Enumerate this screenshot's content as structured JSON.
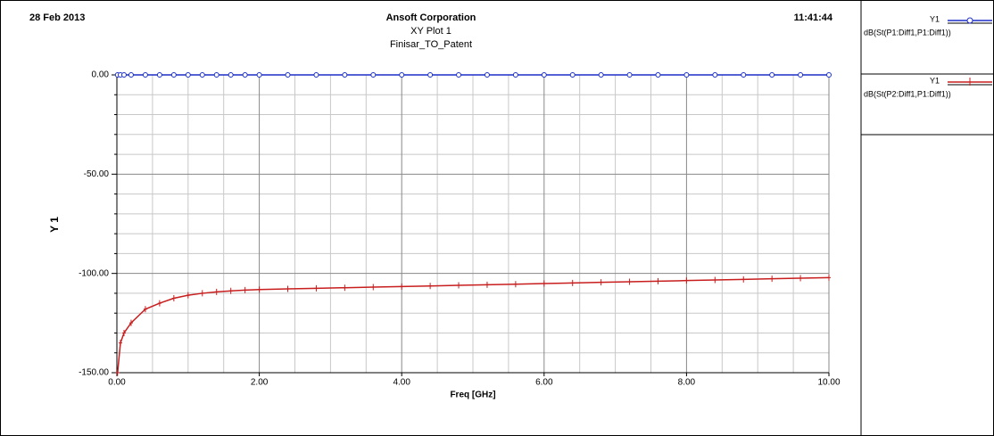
{
  "chart_data": {
    "type": "line",
    "date": "28 Feb 2013",
    "company": "Ansoft Corporation",
    "title": "XY Plot 1",
    "subtitle": "Finisar_TO_Patent",
    "time": "11:41:44",
    "x_label": "Freq [GHz]",
    "y_label": "Y 1",
    "x": [
      0.01,
      0.05,
      0.1,
      0.2,
      0.4,
      0.6,
      0.8,
      1.0,
      1.2,
      1.4,
      1.6,
      1.8,
      2.0,
      2.4,
      2.8,
      3.2,
      3.6,
      4.0,
      4.4,
      4.8,
      5.2,
      5.6,
      6.0,
      6.4,
      6.8,
      7.2,
      7.6,
      8.0,
      8.4,
      8.8,
      9.2,
      9.6,
      10.0
    ],
    "series": [
      {
        "name": "dB(St(P1:Diff1,P1:Diff1))",
        "trace_axis": "Y1",
        "color": "#1c2fc8",
        "marker": "circle",
        "values": [
          0,
          0,
          0,
          0,
          0,
          0,
          0,
          0,
          0,
          0,
          0,
          0,
          0,
          0,
          0,
          0,
          0,
          0,
          0,
          0,
          0,
          0,
          0,
          0,
          0,
          0,
          0,
          0,
          0,
          0,
          0,
          0,
          0
        ]
      },
      {
        "name": "dB(St(P2:Diff1,P1:Diff1))",
        "trace_axis": "Y1",
        "color": "#c81e1e",
        "marker": "plus",
        "values": [
          -150,
          -135,
          -130,
          -124.9,
          -118,
          -115,
          -112.5,
          -111,
          -110,
          -109.3,
          -108.8,
          -108.4,
          -108.1,
          -107.8,
          -107.5,
          -107.2,
          -106.9,
          -106.6,
          -106.3,
          -106.0,
          -105.7,
          -105.4,
          -105.1,
          -104.8,
          -104.5,
          -104.2,
          -103.9,
          -103.6,
          -103.3,
          -103.0,
          -102.7,
          -102.4,
          -102.1
        ]
      }
    ],
    "xlim": [
      0,
      10
    ],
    "ylim": [
      -150,
      0
    ],
    "xticks": [
      {
        "value": 0,
        "label": "0.00"
      },
      {
        "value": 2,
        "label": "2.00"
      },
      {
        "value": 4,
        "label": "4.00"
      },
      {
        "value": 6,
        "label": "6.00"
      },
      {
        "value": 8,
        "label": "8.00"
      },
      {
        "value": 10,
        "label": "10.00"
      }
    ],
    "yticks": [
      {
        "value": -150,
        "label": "-150.00"
      },
      {
        "value": -100,
        "label": "-100.00"
      },
      {
        "value": -50,
        "label": "-50.00"
      },
      {
        "value": 0,
        "label": "0.00"
      }
    ],
    "grid": true
  }
}
